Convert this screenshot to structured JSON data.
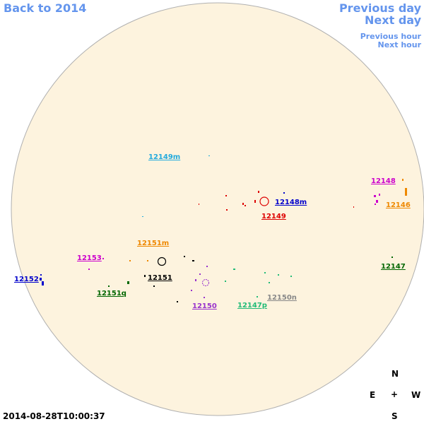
{
  "nav": {
    "back": "Back to 2014",
    "previous_day": "Previous day",
    "next_day": "Next day",
    "previous_hour": "Previous hour",
    "next_hour": "Next hour"
  },
  "regions": [
    {
      "label": "12149m",
      "color": "#22aadd"
    },
    {
      "label": "12148",
      "color": "#cc00cc"
    },
    {
      "label": "12148m",
      "color": "#0000cc"
    },
    {
      "label": "12146",
      "color": "#ee8800"
    },
    {
      "label": "12149",
      "color": "#dd0000"
    },
    {
      "label": "12151m",
      "color": "#ee8800"
    },
    {
      "label": "12153",
      "color": "#cc00cc"
    },
    {
      "label": "12147",
      "color": "#006600"
    },
    {
      "label": "12151",
      "color": "#000000"
    },
    {
      "label": "12152",
      "color": "#0000cc"
    },
    {
      "label": "12151q",
      "color": "#006600"
    },
    {
      "label": "12150n",
      "color": "#888888"
    },
    {
      "label": "12150",
      "color": "#9933cc"
    },
    {
      "label": "12147p",
      "color": "#22bb77"
    }
  ],
  "compass": {
    "north": "N",
    "east": "E",
    "center": "+",
    "west": "W",
    "south": "S"
  },
  "timestamp": "2014-08-28T10:00:37"
}
